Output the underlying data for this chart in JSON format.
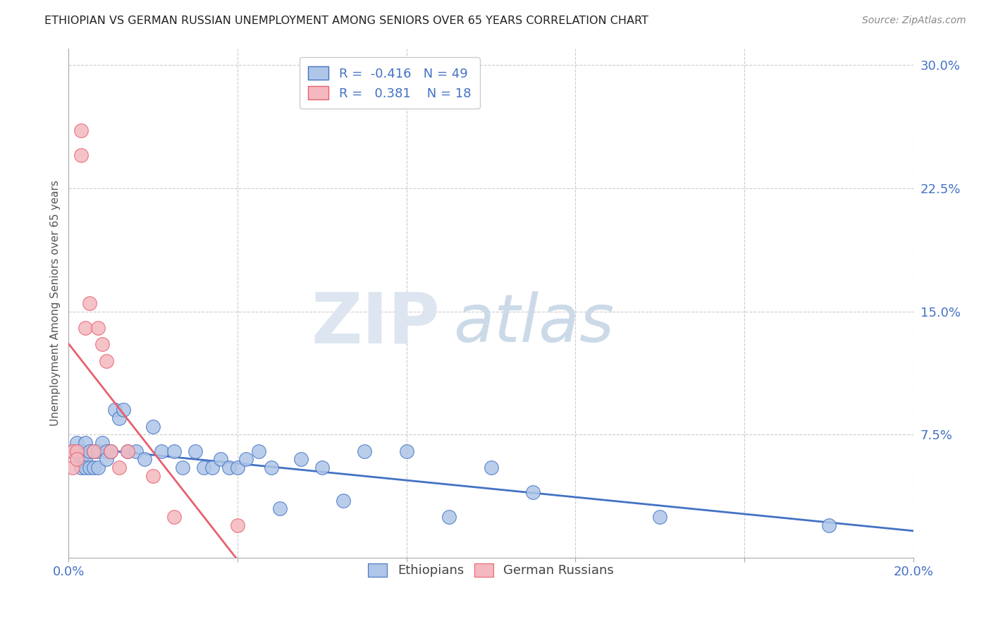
{
  "title": "ETHIOPIAN VS GERMAN RUSSIAN UNEMPLOYMENT AMONG SENIORS OVER 65 YEARS CORRELATION CHART",
  "source": "Source: ZipAtlas.com",
  "ylabel": "Unemployment Among Seniors over 65 years",
  "legend_r_ethiopians": "-0.416",
  "legend_n_ethiopians": "49",
  "legend_r_german": "0.381",
  "legend_n_german": "18",
  "ethiopian_color": "#aec6e8",
  "german_color": "#f4b8bf",
  "trendline_ethiopian_color": "#4472c4",
  "trendline_german_color": "#e8606e",
  "ethiopians_x": [
    0.001,
    0.002,
    0.002,
    0.003,
    0.003,
    0.003,
    0.004,
    0.004,
    0.004,
    0.005,
    0.005,
    0.006,
    0.006,
    0.007,
    0.007,
    0.008,
    0.009,
    0.009,
    0.01,
    0.011,
    0.012,
    0.013,
    0.014,
    0.016,
    0.018,
    0.02,
    0.022,
    0.025,
    0.027,
    0.03,
    0.032,
    0.034,
    0.036,
    0.038,
    0.04,
    0.042,
    0.045,
    0.048,
    0.05,
    0.055,
    0.06,
    0.065,
    0.07,
    0.08,
    0.09,
    0.1,
    0.11,
    0.14,
    0.18
  ],
  "ethiopians_y": [
    0.065,
    0.065,
    0.07,
    0.065,
    0.06,
    0.055,
    0.07,
    0.06,
    0.055,
    0.065,
    0.055,
    0.065,
    0.055,
    0.065,
    0.055,
    0.07,
    0.065,
    0.06,
    0.065,
    0.09,
    0.085,
    0.09,
    0.065,
    0.065,
    0.06,
    0.08,
    0.065,
    0.065,
    0.055,
    0.065,
    0.055,
    0.055,
    0.06,
    0.055,
    0.055,
    0.06,
    0.065,
    0.055,
    0.03,
    0.06,
    0.055,
    0.035,
    0.065,
    0.065,
    0.025,
    0.055,
    0.04,
    0.025,
    0.02
  ],
  "german_x": [
    0.001,
    0.001,
    0.002,
    0.002,
    0.003,
    0.003,
    0.004,
    0.005,
    0.006,
    0.007,
    0.008,
    0.009,
    0.01,
    0.012,
    0.014,
    0.02,
    0.025,
    0.04
  ],
  "german_y": [
    0.055,
    0.065,
    0.065,
    0.06,
    0.26,
    0.245,
    0.14,
    0.155,
    0.065,
    0.14,
    0.13,
    0.12,
    0.065,
    0.055,
    0.065,
    0.05,
    0.025,
    0.02
  ],
  "xlim": [
    0.0,
    0.2
  ],
  "ylim": [
    0.0,
    0.31
  ],
  "yticks": [
    0.0,
    0.075,
    0.15,
    0.225,
    0.3
  ],
  "ytick_labels": [
    "",
    "7.5%",
    "15.0%",
    "22.5%",
    "30.0%"
  ],
  "xticks": [
    0.0,
    0.04,
    0.08,
    0.12,
    0.16,
    0.2
  ],
  "xtick_labels": [
    "0.0%",
    "",
    "",
    "",
    "",
    "20.0%"
  ]
}
